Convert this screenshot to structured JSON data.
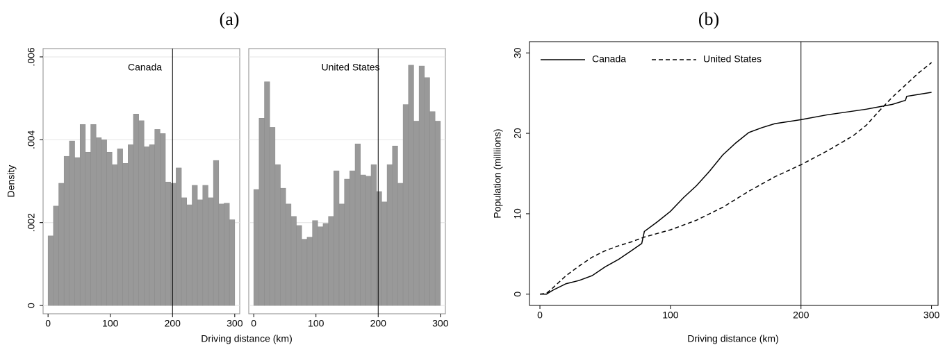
{
  "chart_data": [
    {
      "type": "histogram",
      "title": "(a)",
      "subtitle": "Canada",
      "xlabel": "Driving distance (km)",
      "ylabel": "Density",
      "bins": [
        0,
        8.57,
        17.14,
        25.71,
        34.29,
        42.86,
        51.43,
        60,
        68.57,
        77.14,
        85.71,
        94.29,
        102.86,
        111.43,
        120,
        128.57,
        137.14,
        145.71,
        154.29,
        162.86,
        171.43,
        180,
        188.57,
        197.14,
        205.71,
        214.29,
        222.86,
        231.43,
        240,
        248.57,
        257.14,
        265.71,
        274.29,
        282.86,
        291.43,
        300
      ],
      "values": [
        0.00168,
        0.0024,
        0.00295,
        0.0036,
        0.00397,
        0.00357,
        0.00437,
        0.0037,
        0.00437,
        0.00405,
        0.004,
        0.0037,
        0.0034,
        0.00378,
        0.00343,
        0.00388,
        0.00462,
        0.00446,
        0.00383,
        0.00388,
        0.00425,
        0.00415,
        0.00298,
        0.00295,
        0.00332,
        0.0026,
        0.00243,
        0.0029,
        0.00255,
        0.0029,
        0.0026,
        0.0035,
        0.00245,
        0.00247,
        0.00207
      ],
      "color": "#999999",
      "vline": 200,
      "xlim": [
        -8,
        308
      ],
      "xticks": [
        0,
        100,
        200,
        300
      ],
      "ylim": [
        -0.0002,
        0.0062
      ],
      "yticks": [
        0,
        {
          "value": 0.002,
          "label": ".002"
        },
        {
          "value": 0.004,
          "label": ".004"
        },
        {
          "value": 0.006,
          "label": ".006"
        }
      ],
      "grid": true
    },
    {
      "type": "histogram",
      "subtitle": "United States",
      "bins": [
        0,
        8.57,
        17.14,
        25.71,
        34.29,
        42.86,
        51.43,
        60,
        68.57,
        77.14,
        85.71,
        94.29,
        102.86,
        111.43,
        120,
        128.57,
        137.14,
        145.71,
        154.29,
        162.86,
        171.43,
        180,
        188.57,
        197.14,
        205.71,
        214.29,
        222.86,
        231.43,
        240,
        248.57,
        257.14,
        265.71,
        274.29,
        282.86,
        291.43,
        300
      ],
      "values": [
        0.0028,
        0.00452,
        0.0054,
        0.0043,
        0.0034,
        0.00283,
        0.00245,
        0.00215,
        0.00193,
        0.0016,
        0.00165,
        0.00205,
        0.0019,
        0.00198,
        0.00215,
        0.00325,
        0.00245,
        0.00305,
        0.00325,
        0.0039,
        0.00315,
        0.00312,
        0.0034,
        0.00275,
        0.0025,
        0.0034,
        0.00385,
        0.00295,
        0.00485,
        0.0058,
        0.00445,
        0.00578,
        0.0055,
        0.00468,
        0.00445
      ],
      "color": "#999999",
      "vline": 200,
      "xlim": [
        -8,
        308
      ],
      "xticks": [
        0,
        100,
        200,
        300
      ],
      "ylim": [
        -0.0002,
        0.0062
      ],
      "yticks": [
        0,
        0.002,
        0.004,
        0.006
      ],
      "grid": true
    },
    {
      "type": "line",
      "title": "(b)",
      "xlabel": "Driving distance (km)",
      "ylabel": "Population (milliions)",
      "vline": 200,
      "legend": "top-left",
      "series": [
        {
          "name": "Canada",
          "color": "#000000",
          "dash": "solid",
          "x": [
            0,
            5,
            10,
            20,
            30,
            40,
            50,
            60,
            70,
            78,
            80,
            90,
            100,
            110,
            120,
            130,
            140,
            150,
            160,
            170,
            180,
            200,
            220,
            250,
            270,
            280,
            281,
            300
          ],
          "values": [
            0,
            0,
            0.5,
            1.3,
            1.7,
            2.3,
            3.4,
            4.3,
            5.4,
            6.3,
            7.8,
            9,
            10.3,
            12,
            13.5,
            15.3,
            17.3,
            18.8,
            20.1,
            20.7,
            21.2,
            21.7,
            22.3,
            23,
            23.6,
            24.1,
            24.6,
            25.1
          ]
        },
        {
          "name": "United States",
          "color": "#000000",
          "dash": "dashed",
          "x": [
            0,
            5,
            10,
            20,
            30,
            40,
            50,
            60,
            70,
            80,
            100,
            120,
            140,
            160,
            180,
            200,
            220,
            240,
            250,
            260,
            270,
            280,
            290,
            300
          ],
          "values": [
            0,
            0.1,
            0.8,
            2.3,
            3.5,
            4.6,
            5.4,
            6,
            6.5,
            7.1,
            8,
            9.2,
            10.8,
            12.8,
            14.6,
            16.1,
            17.8,
            19.7,
            21,
            22.8,
            24.5,
            26,
            27.5,
            28.8
          ]
        }
      ],
      "xlim": [
        -8,
        305
      ],
      "xticks": [
        0,
        100,
        200,
        300
      ],
      "ylim": [
        -1.4,
        31.4
      ],
      "yticks": [
        0,
        10,
        20,
        30
      ]
    }
  ]
}
